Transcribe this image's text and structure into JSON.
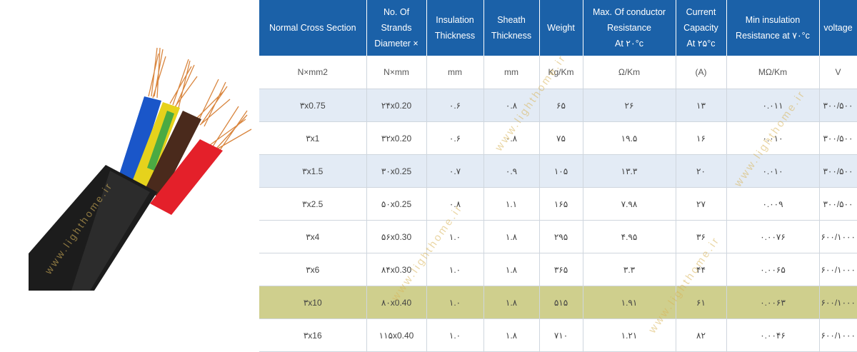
{
  "watermark": "www.lighthome.ir",
  "colors": {
    "header_bg": "#1b61a8",
    "row_shade": "#e3ebf5",
    "row_highlight": "#cfcf8d",
    "cable_jacket": "#1c1c1c",
    "wire_blue": "#1a56c9",
    "wire_yellow_green": "#e6d21c",
    "wire_brown": "#4a2a1c",
    "wire_red": "#e4202a",
    "copper": "#d9863f"
  },
  "table": {
    "headers": [
      [
        "Normal Cross Section"
      ],
      [
        "No. Of",
        "Strands",
        "Diameter ×"
      ],
      [
        "Insulation",
        "Thickness"
      ],
      [
        "Sheath",
        "Thickness"
      ],
      [
        "Weight"
      ],
      [
        "Max. Of conductor",
        "Resistance",
        "At ۲۰°c"
      ],
      [
        "Current",
        "Capacity",
        "At ۲۵°c"
      ],
      [
        "Min insulation",
        "Resistance at ۷۰°c"
      ],
      [
        "voltage"
      ]
    ],
    "units": [
      "N×mm2",
      "N×mm",
      "mm",
      "mm",
      "Kg/Km",
      "Ω/Km",
      "(A)",
      "MΩ/Km",
      "V"
    ],
    "rows": [
      [
        "۳x0.75",
        "۲۴x0.20",
        "۰.۶",
        "۰.۸",
        "۶۵",
        "۲۶",
        "۱۳",
        "۰.۰۱۱",
        "۳۰۰/۵۰۰"
      ],
      [
        "۳x1",
        "۳۲x0.20",
        "۰.۶",
        "۰.۸",
        "۷۵",
        "۱۹.۵",
        "۱۶",
        "۰.۰۱۰",
        "۳۰۰/۵۰۰"
      ],
      [
        "۳x1.5",
        "۳۰x0.25",
        "۰.۷",
        "۰.۹",
        "۱۰۵",
        "۱۳.۳",
        "۲۰",
        "۰.۰۱۰",
        "۳۰۰/۵۰۰"
      ],
      [
        "۳x2.5",
        "۵۰x0.25",
        "۰.۸",
        "۱.۱",
        "۱۶۵",
        "۷.۹۸",
        "۲۷",
        "۰.۰۰۹",
        "۳۰۰/۵۰۰"
      ],
      [
        "۳x4",
        "۵۶x0.30",
        "۱.۰",
        "۱.۸",
        "۲۹۵",
        "۴.۹۵",
        "۳۶",
        "۰.۰۰۷۶",
        "۶۰۰/۱۰۰۰"
      ],
      [
        "۳x6",
        "۸۴x0.30",
        "۱.۰",
        "۱.۸",
        "۳۶۵",
        "۳.۳",
        "۴۴",
        "۰.۰۰۶۵",
        "۶۰۰/۱۰۰۰"
      ],
      [
        "۳x10",
        "۸۰x0.40",
        "۱.۰",
        "۱.۸",
        "۵۱۵",
        "۱.۹۱",
        "۶۱",
        "۰.۰۰۶۳",
        "۶۰۰/۱۰۰۰"
      ],
      [
        "۳x16",
        "۱۱۵x0.40",
        "۱.۰",
        "۱.۸",
        "۷۱۰",
        "۱.۲۱",
        "۸۲",
        "۰.۰۰۴۶",
        "۶۰۰/۱۰۰۰"
      ]
    ],
    "shaded_rows": [
      0,
      2
    ],
    "highlighted_row": 6
  }
}
